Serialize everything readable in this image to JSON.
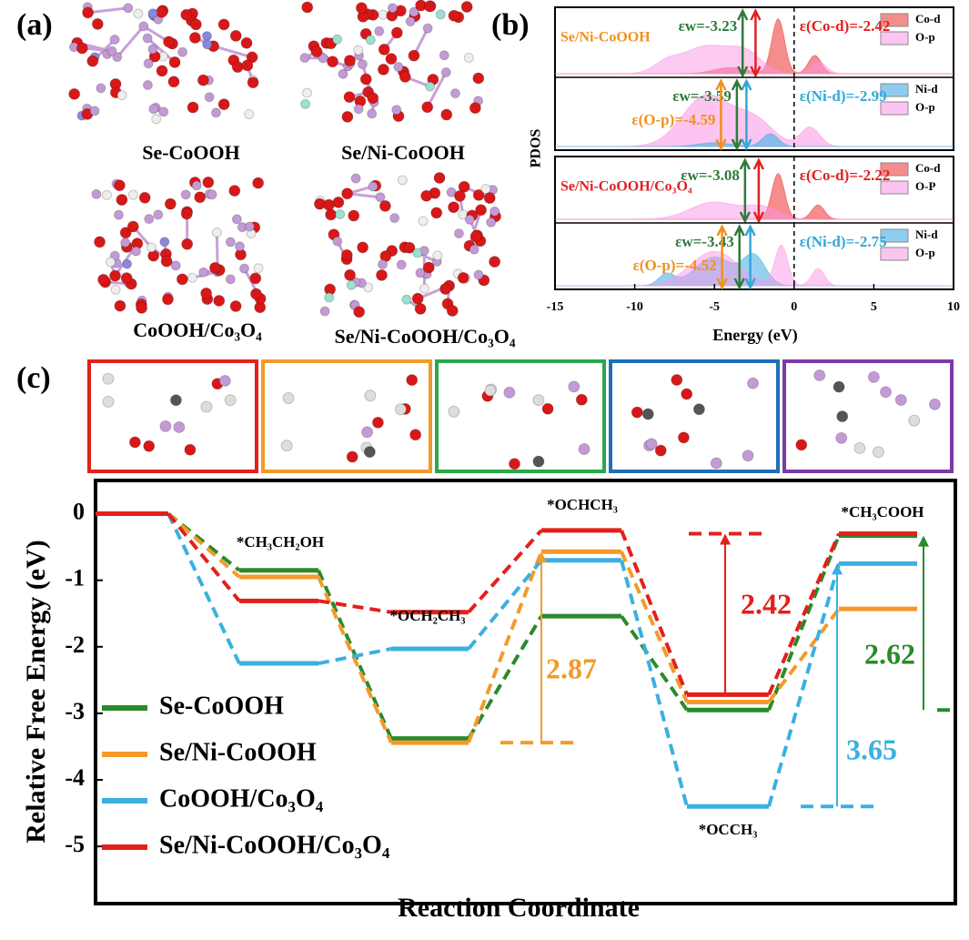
{
  "panels": {
    "a": "(a)",
    "b": "(b)",
    "c": "(c)"
  },
  "structures": [
    "Se-CoOOH",
    "Se/Ni-CoOOH",
    "CoOOH/Co₃O₄",
    "Se/Ni-CoOOH/Co₃O₄"
  ],
  "pdos": {
    "ylabel": "PDOS",
    "xlabel": "Energy (eV)",
    "xlim": [
      -15,
      10
    ],
    "xticks": [
      -15,
      -10,
      -5,
      0,
      5,
      10
    ],
    "panels": [
      {
        "title": "Se/Ni-CoOOH",
        "title_color": "#f0901e",
        "legend": [
          "Co-d",
          "O-p"
        ],
        "annotations": [
          {
            "label": "εw=-3.23",
            "value": -3.23,
            "color": "#2f7a3a"
          },
          {
            "label": "ε(Co-d)=-2.42",
            "value": -2.42,
            "color": "#e02020"
          }
        ]
      },
      {
        "title": null,
        "legend": [
          "Ni-d",
          "O-p"
        ],
        "annotations": [
          {
            "label": "εw=-3.59",
            "value": -3.59,
            "color": "#2f7a3a"
          },
          {
            "label": "ε(O-p)=-4.59",
            "value": -4.59,
            "color": "#f0901e"
          },
          {
            "label": "ε(Ni-d)=-2.99",
            "value": -2.99,
            "color": "#30a8d8"
          }
        ]
      },
      {
        "title": "Se/Ni-CoOOH/Co₃O₄",
        "title_color": "#e02020",
        "legend": [
          "Co-d",
          "O-P"
        ],
        "annotations": [
          {
            "label": "εw=-3.08",
            "value": -3.08,
            "color": "#2f7a3a"
          },
          {
            "label": "ε(Co-d)=-2.22",
            "value": -2.22,
            "color": "#e02020"
          }
        ]
      },
      {
        "title": null,
        "legend": [
          "Ni-d",
          "O-p"
        ],
        "annotations": [
          {
            "label": "εw=-3.43",
            "value": -3.43,
            "color": "#2f7a3a"
          },
          {
            "label": "ε(O-p)=-4.52",
            "value": -4.52,
            "color": "#f0901e"
          },
          {
            "label": "ε(Ni-d)=-2.75",
            "value": -2.75,
            "color": "#30a8d8"
          }
        ]
      }
    ]
  },
  "chart_data": {
    "type": "line",
    "xlabel": "Reaction Coordinate",
    "ylabel": "Relative Free Energy (eV)",
    "categories": [
      null,
      "*CH₃CH₂OH",
      "*OCH₂CH₃",
      "*OCHCH₃",
      "*OCCH₃",
      "*CH₃COOH"
    ],
    "ylim": [
      -5.86,
      0.5
    ],
    "yticks": [
      0,
      -1,
      -2,
      -3,
      -4,
      -5
    ],
    "series": [
      {
        "name": "Se-CoOOH",
        "color": "#2a8a2a",
        "values": [
          0,
          -0.85,
          -3.38,
          -1.54,
          -2.95,
          -0.33
        ]
      },
      {
        "name": "Se/Ni-CoOOH",
        "color": "#f39a2a",
        "values": [
          0,
          -0.95,
          -3.44,
          -0.57,
          -2.83,
          -1.43
        ]
      },
      {
        "name": "CoOOH/Co₃O₄",
        "color": "#3ab0e0",
        "values": [
          0,
          -2.25,
          -2.03,
          -0.7,
          -4.4,
          -0.75
        ]
      },
      {
        "name": "Se/Ni-CoOOH/Co₃O₄",
        "color": "#e3201b",
        "values": [
          0,
          -1.31,
          -1.48,
          -0.25,
          -2.72,
          -0.3
        ]
      }
    ],
    "barriers": [
      {
        "value": 2.87,
        "color": "#f39a2a"
      },
      {
        "value": 2.42,
        "color": "#e3201b"
      },
      {
        "value": 2.62,
        "color": "#2a8a2a"
      },
      {
        "value": 3.65,
        "color": "#3ab0e0"
      }
    ]
  }
}
